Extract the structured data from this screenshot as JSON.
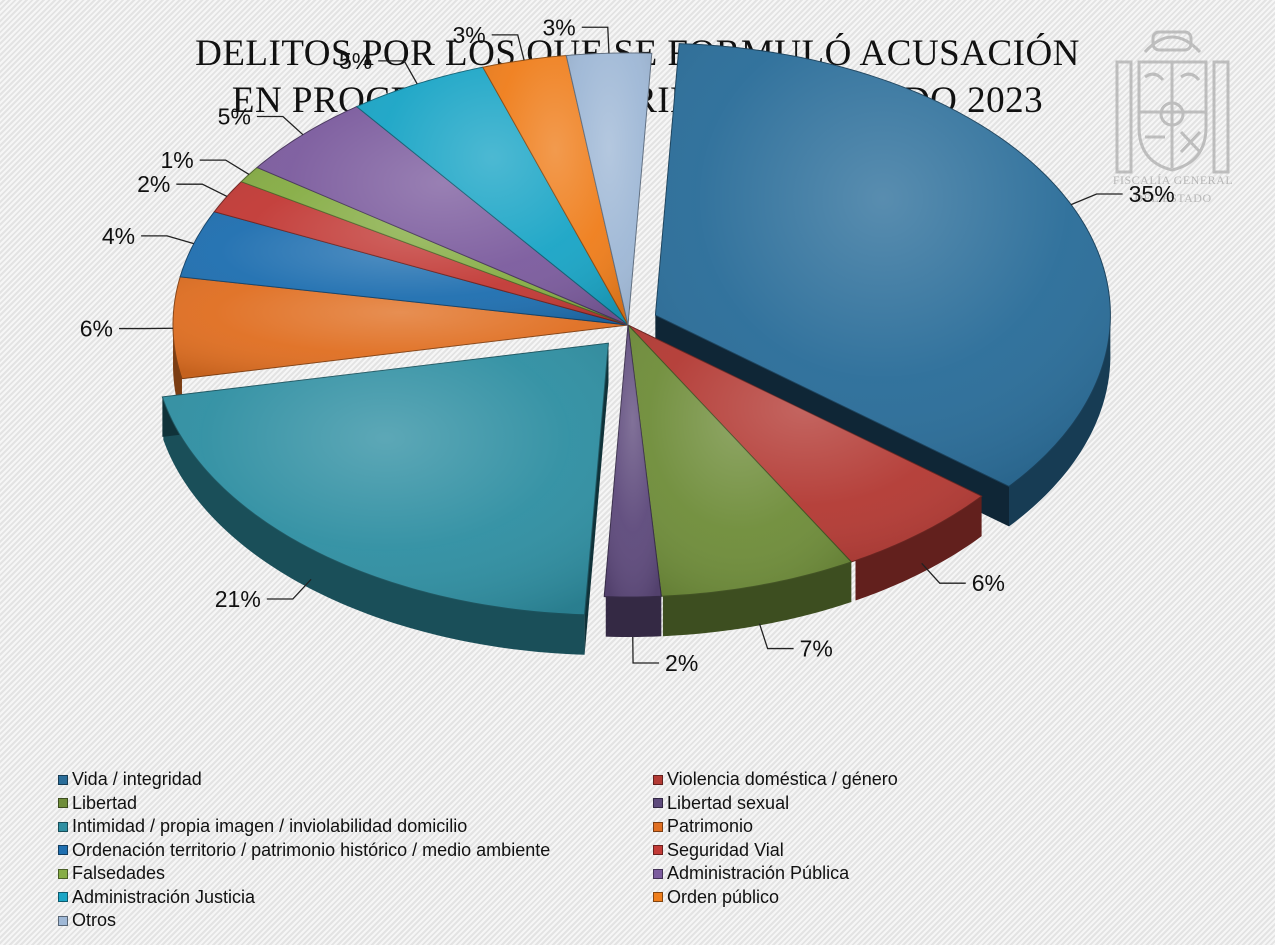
{
  "title": {
    "line1": "DELITOS POR LOS QUE SE FORMULÓ ACUSACIÓN",
    "line2": "EN PROCEDIMIENTO TRIBUNAL JURADO 2023"
  },
  "logo": {
    "icon": "coat-of-arms-icon",
    "line1": "FISCALÍA GENERAL",
    "line2": "DEL ESTADO"
  },
  "chart_data": {
    "type": "pie",
    "style": "3d-exploded",
    "legend_position": "bottom",
    "categories": [
      "Vida / integridad",
      "Violencia doméstica / género",
      "Libertad",
      "Libertad sexual",
      "Intimidad / propia imagen / inviolabilidad domicilio",
      "Patrimonio",
      "Ordenación territorio / patrimonio histórico / medio ambiente",
      "Seguridad Vial",
      "Falsedades",
      "Administración Pública",
      "Administración Justicia",
      "Orden público",
      "Otros"
    ],
    "values": [
      35,
      6,
      7,
      2,
      21,
      6,
      4,
      2,
      1,
      5,
      5,
      3,
      3
    ],
    "labels": [
      "35%",
      "6%",
      "7%",
      "2%",
      "21%",
      "6%",
      "4%",
      "2%",
      "1%",
      "5%",
      "5%",
      "3%",
      "3%"
    ],
    "colors": [
      "#2a6d99",
      "#b33a34",
      "#6f8d3a",
      "#5e4a7c",
      "#2f8fa2",
      "#e06f22",
      "#1f6fb0",
      "#c23a36",
      "#86ad45",
      "#7c5c9e",
      "#1aa5c6",
      "#ef7e1c",
      "#9fb8d6"
    ],
    "exploded": [
      0,
      4
    ]
  }
}
